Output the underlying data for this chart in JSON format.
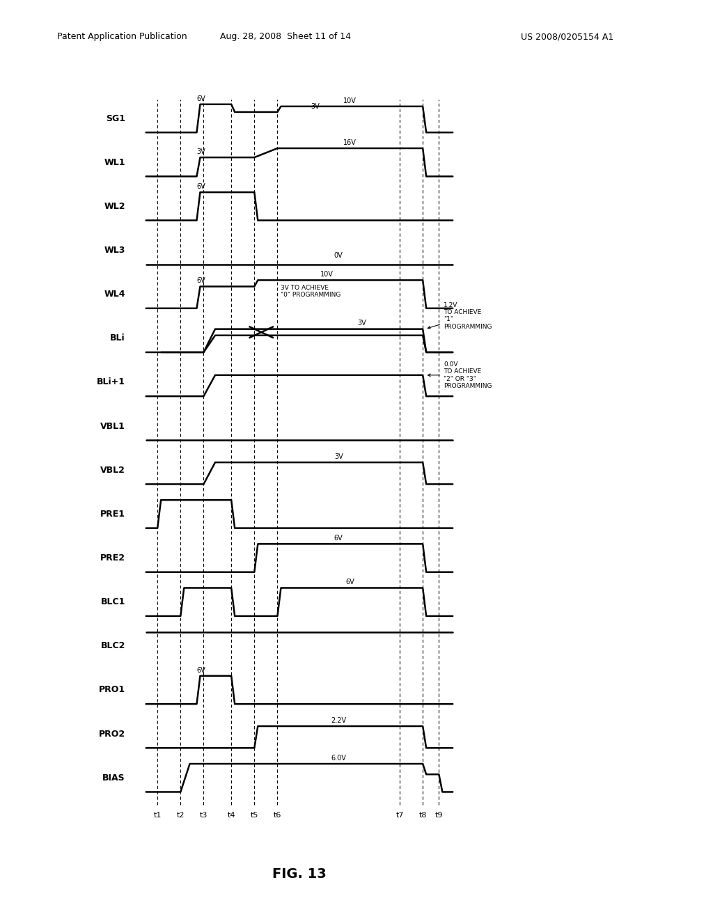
{
  "signals": [
    "SG1",
    "WL1",
    "WL2",
    "WL3",
    "WL4",
    "BLi",
    "BLi+1",
    "VBL1",
    "VBL2",
    "PRE1",
    "PRE2",
    "BLC1",
    "BLC2",
    "PRO1",
    "PRO2",
    "BIAS"
  ],
  "time_labels": [
    "t1",
    "t2",
    "t3",
    "t4",
    "t5",
    "t6",
    "t7",
    "t8",
    "t9"
  ],
  "bg_color": "#ffffff",
  "line_color": "#000000"
}
